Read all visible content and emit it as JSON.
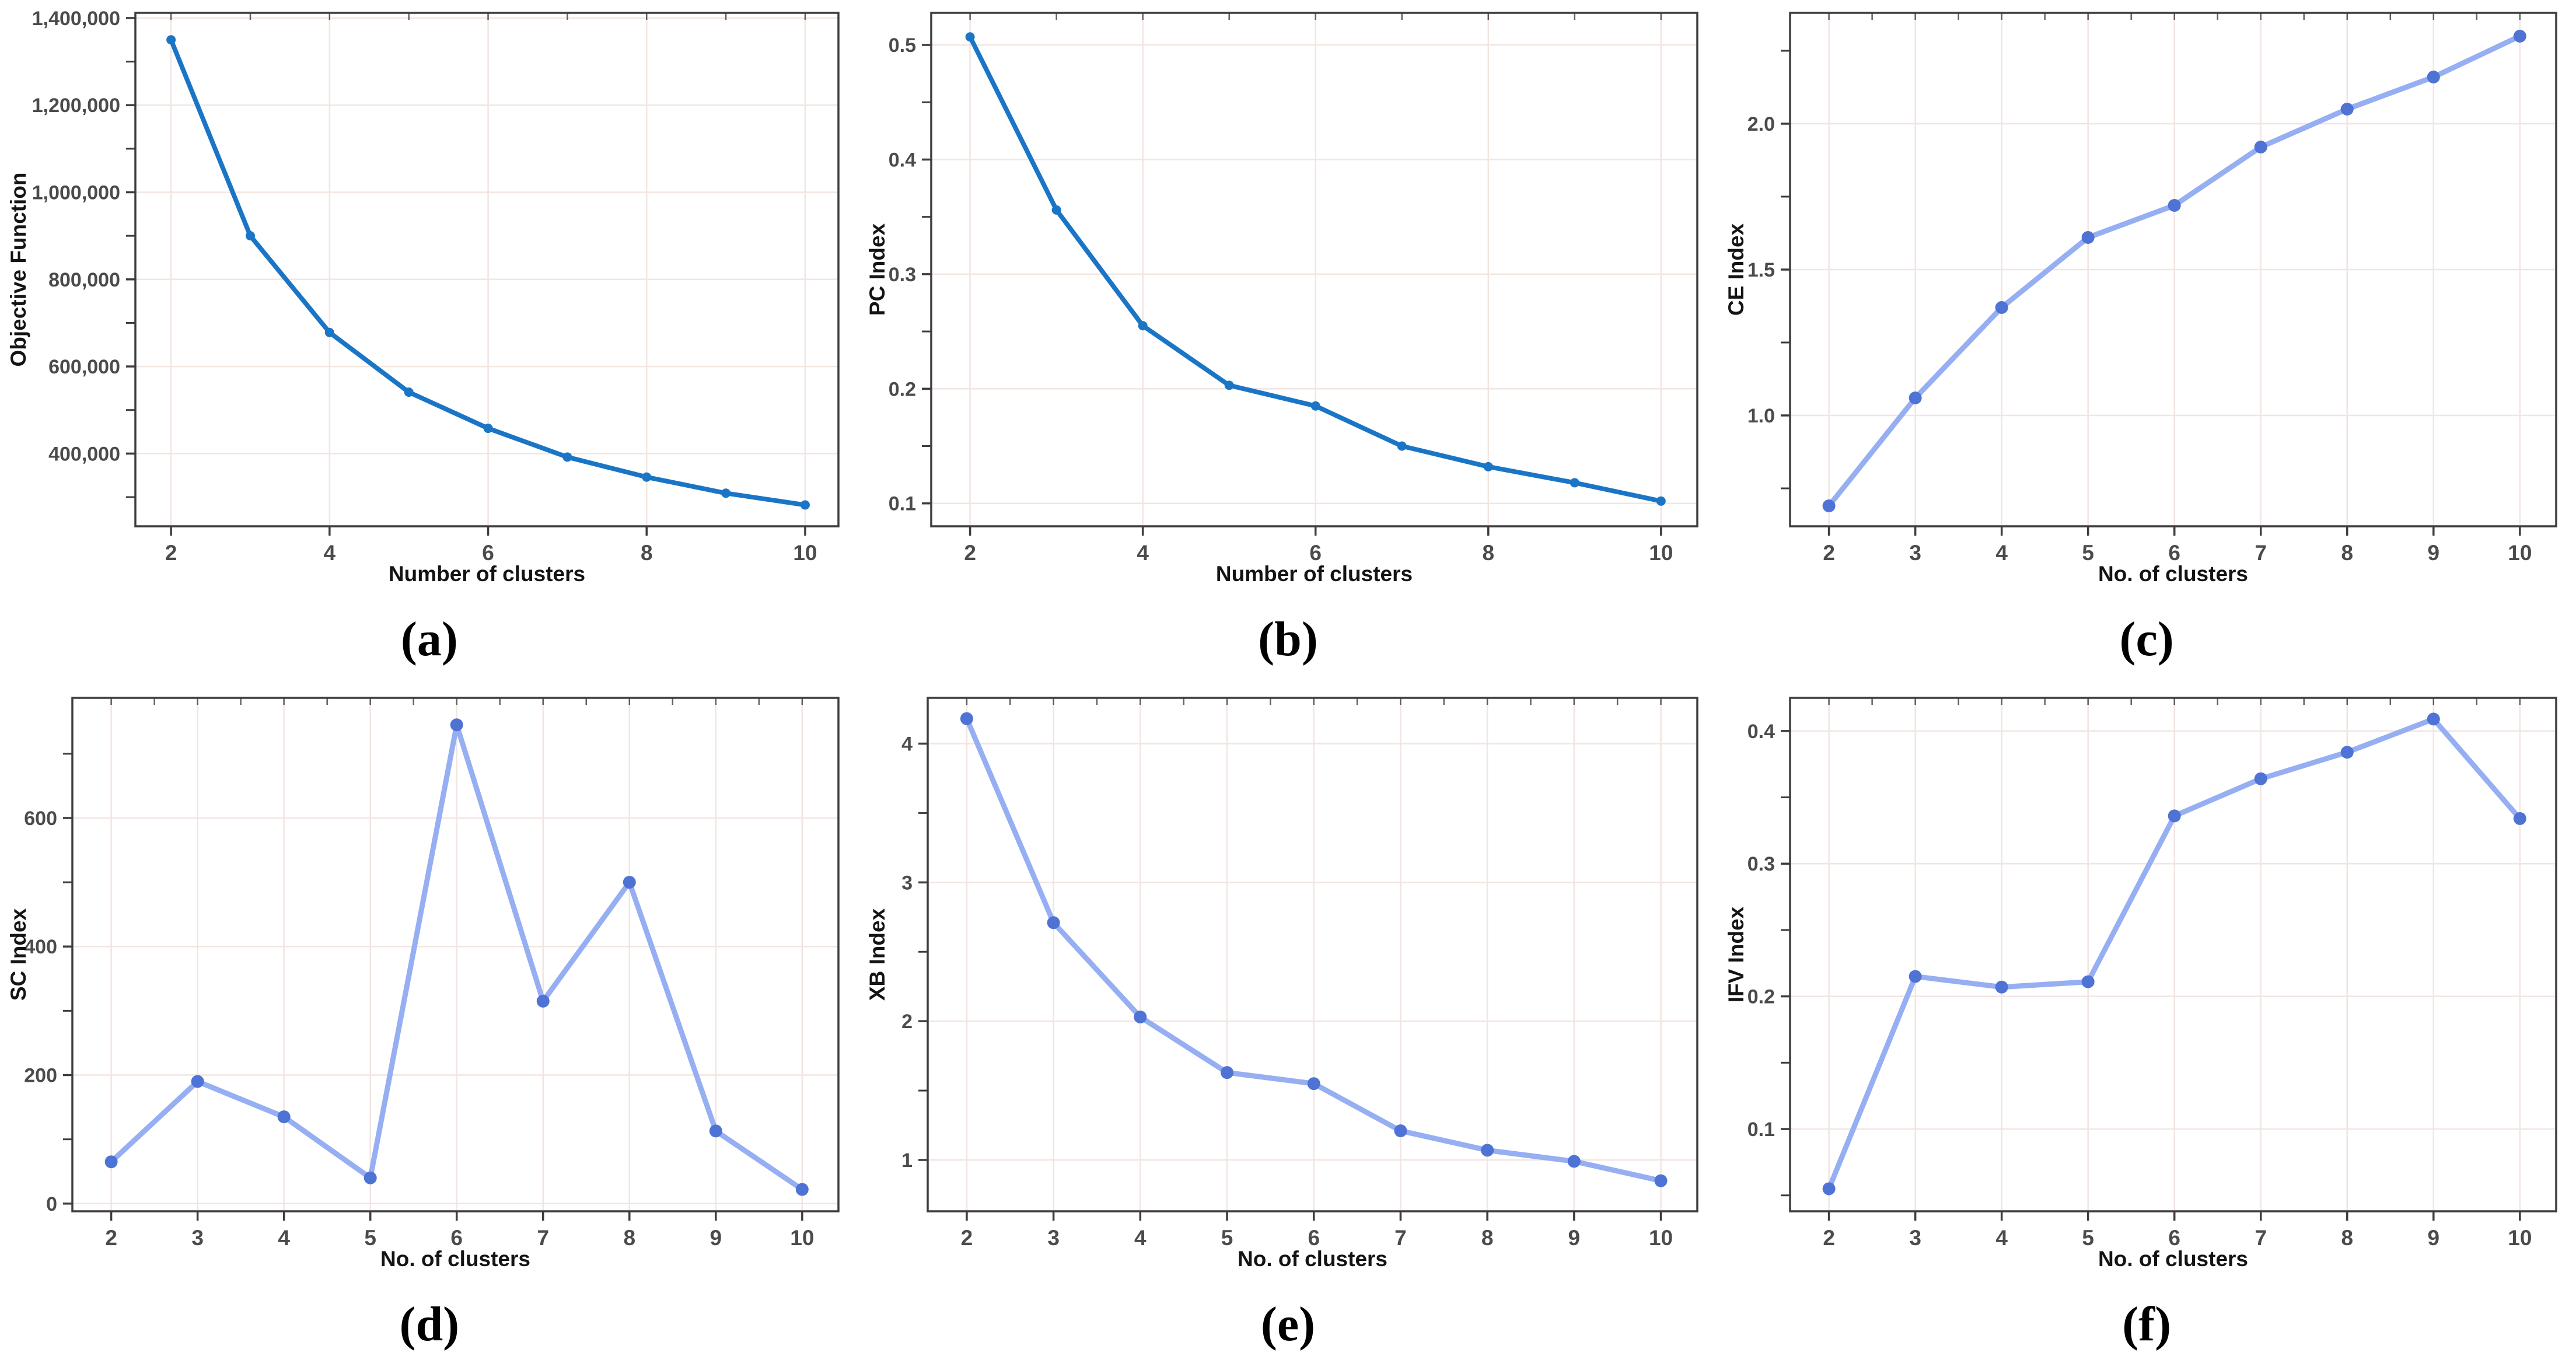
{
  "page": {
    "background": "#ffffff",
    "description_colors": {
      "grid_color": "#f2e5e1",
      "border_color": "#3d3d3d",
      "tick_label_color": "#4b4b4b",
      "axis_label_color": "#141414",
      "strong_blue": "#1b75c6",
      "light_blue": "#96aef2",
      "marker_blue": "#4e73d5"
    }
  },
  "chart_data": [
    {
      "id": "a",
      "caption": "(a)",
      "type": "line",
      "title": "",
      "xlabel": "Number of clusters",
      "ylabel": "Objective Function",
      "x": [
        2,
        3,
        4,
        5,
        6,
        7,
        8,
        9,
        10
      ],
      "values": [
        1350000,
        900000,
        678000,
        541000,
        458000,
        392000,
        346000,
        309000,
        282000
      ],
      "xticks": [
        2,
        4,
        6,
        8,
        10
      ],
      "xtick_labels": [
        "2",
        "4",
        "6",
        "8",
        "10"
      ],
      "yticks": [
        400000,
        600000,
        800000,
        1000000,
        1200000,
        1400000
      ],
      "ytick_labels": [
        "400,000",
        "600,000",
        "800,000",
        "1,000,000",
        "1,200,000",
        "1,400,000"
      ],
      "xlim": [
        1.55,
        10.42
      ],
      "ylim": [
        233000,
        1412000
      ],
      "grid": true,
      "legend": "none",
      "line_color": "#1b75c6",
      "marker_color": "#1b75c6",
      "line_width": 8,
      "marker_radius": 8
    },
    {
      "id": "b",
      "caption": "(b)",
      "type": "line",
      "title": "",
      "xlabel": "Number of clusters",
      "ylabel": "PC Index",
      "x": [
        2,
        3,
        4,
        5,
        6,
        7,
        8,
        9,
        10
      ],
      "values": [
        0.507,
        0.356,
        0.255,
        0.203,
        0.185,
        0.15,
        0.132,
        0.118,
        0.102
      ],
      "xticks": [
        2,
        4,
        6,
        8,
        10
      ],
      "xtick_labels": [
        "2",
        "4",
        "6",
        "8",
        "10"
      ],
      "yticks": [
        0.1,
        0.2,
        0.3,
        0.4,
        0.5
      ],
      "ytick_labels": [
        "0.1",
        "0.2",
        "0.3",
        "0.4",
        "0.5"
      ],
      "xlim": [
        1.55,
        10.42
      ],
      "ylim": [
        0.08,
        0.528
      ],
      "grid": true,
      "legend": "none",
      "line_color": "#1b75c6",
      "marker_color": "#1b75c6",
      "line_width": 8,
      "marker_radius": 8
    },
    {
      "id": "c",
      "caption": "(c)",
      "type": "line",
      "title": "",
      "xlabel": "No. of clusters",
      "ylabel": "CE Index",
      "x": [
        2,
        3,
        4,
        5,
        6,
        7,
        8,
        9,
        10
      ],
      "values": [
        0.69,
        1.06,
        1.37,
        1.61,
        1.72,
        1.92,
        2.05,
        2.16,
        2.3
      ],
      "xticks": [
        2,
        3,
        4,
        5,
        6,
        7,
        8,
        9,
        10
      ],
      "xtick_labels": [
        "2",
        "3",
        "4",
        "5",
        "6",
        "7",
        "8",
        "9",
        "10"
      ],
      "yticks": [
        1.0,
        1.5,
        2.0
      ],
      "ytick_labels": [
        "1.0",
        "1.5",
        "2.0"
      ],
      "xlim": [
        1.55,
        10.42
      ],
      "ylim": [
        0.62,
        2.38
      ],
      "grid": true,
      "legend": "none",
      "line_color": "#96aef2",
      "marker_color": "#4e73d5",
      "line_width": 9,
      "marker_radius": 11
    },
    {
      "id": "d",
      "caption": "(d)",
      "type": "line",
      "title": "",
      "xlabel": "No. of clusters",
      "ylabel": "SC Index",
      "x": [
        2,
        3,
        4,
        5,
        6,
        7,
        8,
        9,
        10
      ],
      "values": [
        65,
        190,
        135,
        40,
        745,
        315,
        500,
        113,
        22
      ],
      "xticks": [
        2,
        3,
        4,
        5,
        6,
        7,
        8,
        9,
        10
      ],
      "xtick_labels": [
        "2",
        "3",
        "4",
        "5",
        "6",
        "7",
        "8",
        "9",
        "10"
      ],
      "yticks": [
        0,
        200,
        400,
        600
      ],
      "ytick_labels": [
        "0",
        "200",
        "400",
        "600"
      ],
      "xlim": [
        1.55,
        10.42
      ],
      "ylim": [
        -12,
        787
      ],
      "grid": true,
      "legend": "none",
      "line_color": "#96aef2",
      "marker_color": "#4e73d5",
      "line_width": 9,
      "marker_radius": 11
    },
    {
      "id": "e",
      "caption": "(e)",
      "type": "line",
      "title": "",
      "xlabel": "No. of clusters",
      "ylabel": "XB Index",
      "x": [
        2,
        3,
        4,
        5,
        6,
        7,
        8,
        9,
        10
      ],
      "values": [
        4.18,
        2.71,
        2.03,
        1.63,
        1.55,
        1.21,
        1.07,
        0.99,
        0.85
      ],
      "xticks": [
        2,
        3,
        4,
        5,
        6,
        7,
        8,
        9,
        10
      ],
      "xtick_labels": [
        "2",
        "3",
        "4",
        "5",
        "6",
        "7",
        "8",
        "9",
        "10"
      ],
      "yticks": [
        1,
        2,
        3,
        4
      ],
      "ytick_labels": [
        "1",
        "2",
        "3",
        "4"
      ],
      "xlim": [
        1.55,
        10.42
      ],
      "ylim": [
        0.63,
        4.33
      ],
      "grid": true,
      "legend": "none",
      "line_color": "#96aef2",
      "marker_color": "#4e73d5",
      "line_width": 9,
      "marker_radius": 11
    },
    {
      "id": "f",
      "caption": "(f)",
      "type": "line",
      "title": "",
      "xlabel": "No. of clusters",
      "ylabel": "IFV Index",
      "x": [
        2,
        3,
        4,
        5,
        6,
        7,
        8,
        9,
        10
      ],
      "values": [
        0.055,
        0.215,
        0.207,
        0.211,
        0.336,
        0.364,
        0.384,
        0.409,
        0.334
      ],
      "xticks": [
        2,
        3,
        4,
        5,
        6,
        7,
        8,
        9,
        10
      ],
      "xtick_labels": [
        "2",
        "3",
        "4",
        "5",
        "6",
        "7",
        "8",
        "9",
        "10"
      ],
      "yticks": [
        0.1,
        0.2,
        0.3,
        0.4
      ],
      "ytick_labels": [
        "0.1",
        "0.2",
        "0.3",
        "0.4"
      ],
      "xlim": [
        1.55,
        10.42
      ],
      "ylim": [
        0.038,
        0.425
      ],
      "grid": true,
      "legend": "none",
      "line_color": "#96aef2",
      "marker_color": "#4e73d5",
      "line_width": 9,
      "marker_radius": 11
    }
  ]
}
